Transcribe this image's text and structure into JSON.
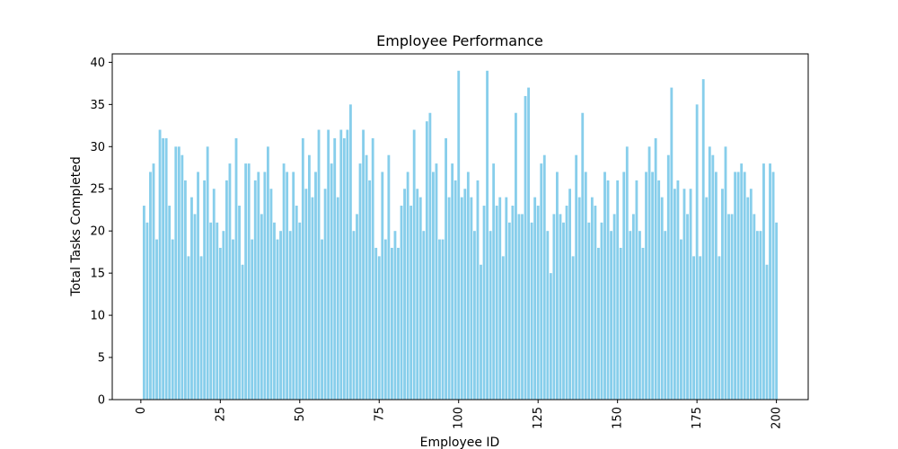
{
  "chart_data": {
    "type": "bar",
    "title": "Employee Performance",
    "xlabel": "Employee ID",
    "ylabel": "Total Tasks Completed",
    "bar_color": "#87ceeb",
    "xlim": [
      -9,
      210
    ],
    "ylim": [
      0,
      41
    ],
    "x_ticks": [
      0,
      25,
      50,
      75,
      100,
      125,
      150,
      175,
      200
    ],
    "y_ticks": [
      0,
      5,
      10,
      15,
      20,
      25,
      30,
      35,
      40
    ],
    "grid": false,
    "x": [
      1,
      2,
      3,
      4,
      5,
      6,
      7,
      8,
      9,
      10,
      11,
      12,
      13,
      14,
      15,
      16,
      17,
      18,
      19,
      20,
      21,
      22,
      23,
      24,
      25,
      26,
      27,
      28,
      29,
      30,
      31,
      32,
      33,
      34,
      35,
      36,
      37,
      38,
      39,
      40,
      41,
      42,
      43,
      44,
      45,
      46,
      47,
      48,
      49,
      50,
      51,
      52,
      53,
      54,
      55,
      56,
      57,
      58,
      59,
      60,
      61,
      62,
      63,
      64,
      65,
      66,
      67,
      68,
      69,
      70,
      71,
      72,
      73,
      74,
      75,
      76,
      77,
      78,
      79,
      80,
      81,
      82,
      83,
      84,
      85,
      86,
      87,
      88,
      89,
      90,
      91,
      92,
      93,
      94,
      95,
      96,
      97,
      98,
      99,
      100,
      101,
      102,
      103,
      104,
      105,
      106,
      107,
      108,
      109,
      110,
      111,
      112,
      113,
      114,
      115,
      116,
      117,
      118,
      119,
      120,
      121,
      122,
      123,
      124,
      125,
      126,
      127,
      128,
      129,
      130,
      131,
      132,
      133,
      134,
      135,
      136,
      137,
      138,
      139,
      140,
      141,
      142,
      143,
      144,
      145,
      146,
      147,
      148,
      149,
      150,
      151,
      152,
      153,
      154,
      155,
      156,
      157,
      158,
      159,
      160,
      161,
      162,
      163,
      164,
      165,
      166,
      167,
      168,
      169,
      170,
      171,
      172,
      173,
      174,
      175,
      176,
      177,
      178,
      179,
      180,
      181,
      182,
      183,
      184,
      185,
      186,
      187,
      188,
      189,
      190,
      191,
      192,
      193,
      194,
      195,
      196,
      197,
      198,
      199,
      200
    ],
    "values": [
      23,
      21,
      27,
      28,
      19,
      32,
      31,
      31,
      23,
      19,
      30,
      30,
      29,
      26,
      17,
      24,
      22,
      27,
      17,
      26,
      30,
      21,
      25,
      21,
      18,
      20,
      26,
      28,
      19,
      31,
      23,
      16,
      28,
      28,
      19,
      26,
      27,
      22,
      27,
      30,
      25,
      21,
      19,
      20,
      28,
      27,
      20,
      27,
      23,
      21,
      31,
      25,
      29,
      24,
      27,
      32,
      19,
      25,
      32,
      28,
      31,
      24,
      32,
      31,
      32,
      35,
      20,
      22,
      28,
      32,
      29,
      26,
      31,
      18,
      17,
      27,
      19,
      29,
      18,
      20,
      18,
      23,
      25,
      27,
      23,
      32,
      25,
      24,
      20,
      33,
      34,
      27,
      28,
      19,
      19,
      31,
      24,
      28,
      26,
      39,
      24,
      25,
      27,
      24,
      20,
      26,
      16,
      23,
      39,
      20,
      28,
      23,
      24,
      17,
      24,
      21,
      23,
      34,
      22,
      22,
      36,
      37,
      21,
      24,
      23,
      28,
      29,
      20,
      15,
      22,
      27,
      22,
      21,
      23,
      25,
      17,
      29,
      24,
      34,
      27,
      21,
      24,
      23,
      18,
      21,
      27,
      26,
      20,
      22,
      26,
      18,
      27,
      30,
      20,
      22,
      26,
      20,
      18,
      27,
      30,
      27,
      31,
      26,
      24,
      20,
      29,
      37,
      25,
      26,
      19,
      25,
      22,
      25,
      17,
      35,
      17,
      38,
      24,
      30,
      29,
      27,
      17,
      25,
      30,
      22,
      22,
      27,
      27,
      28,
      27,
      24,
      25,
      22,
      20,
      20,
      28,
      16,
      28,
      27,
      21
    ]
  }
}
